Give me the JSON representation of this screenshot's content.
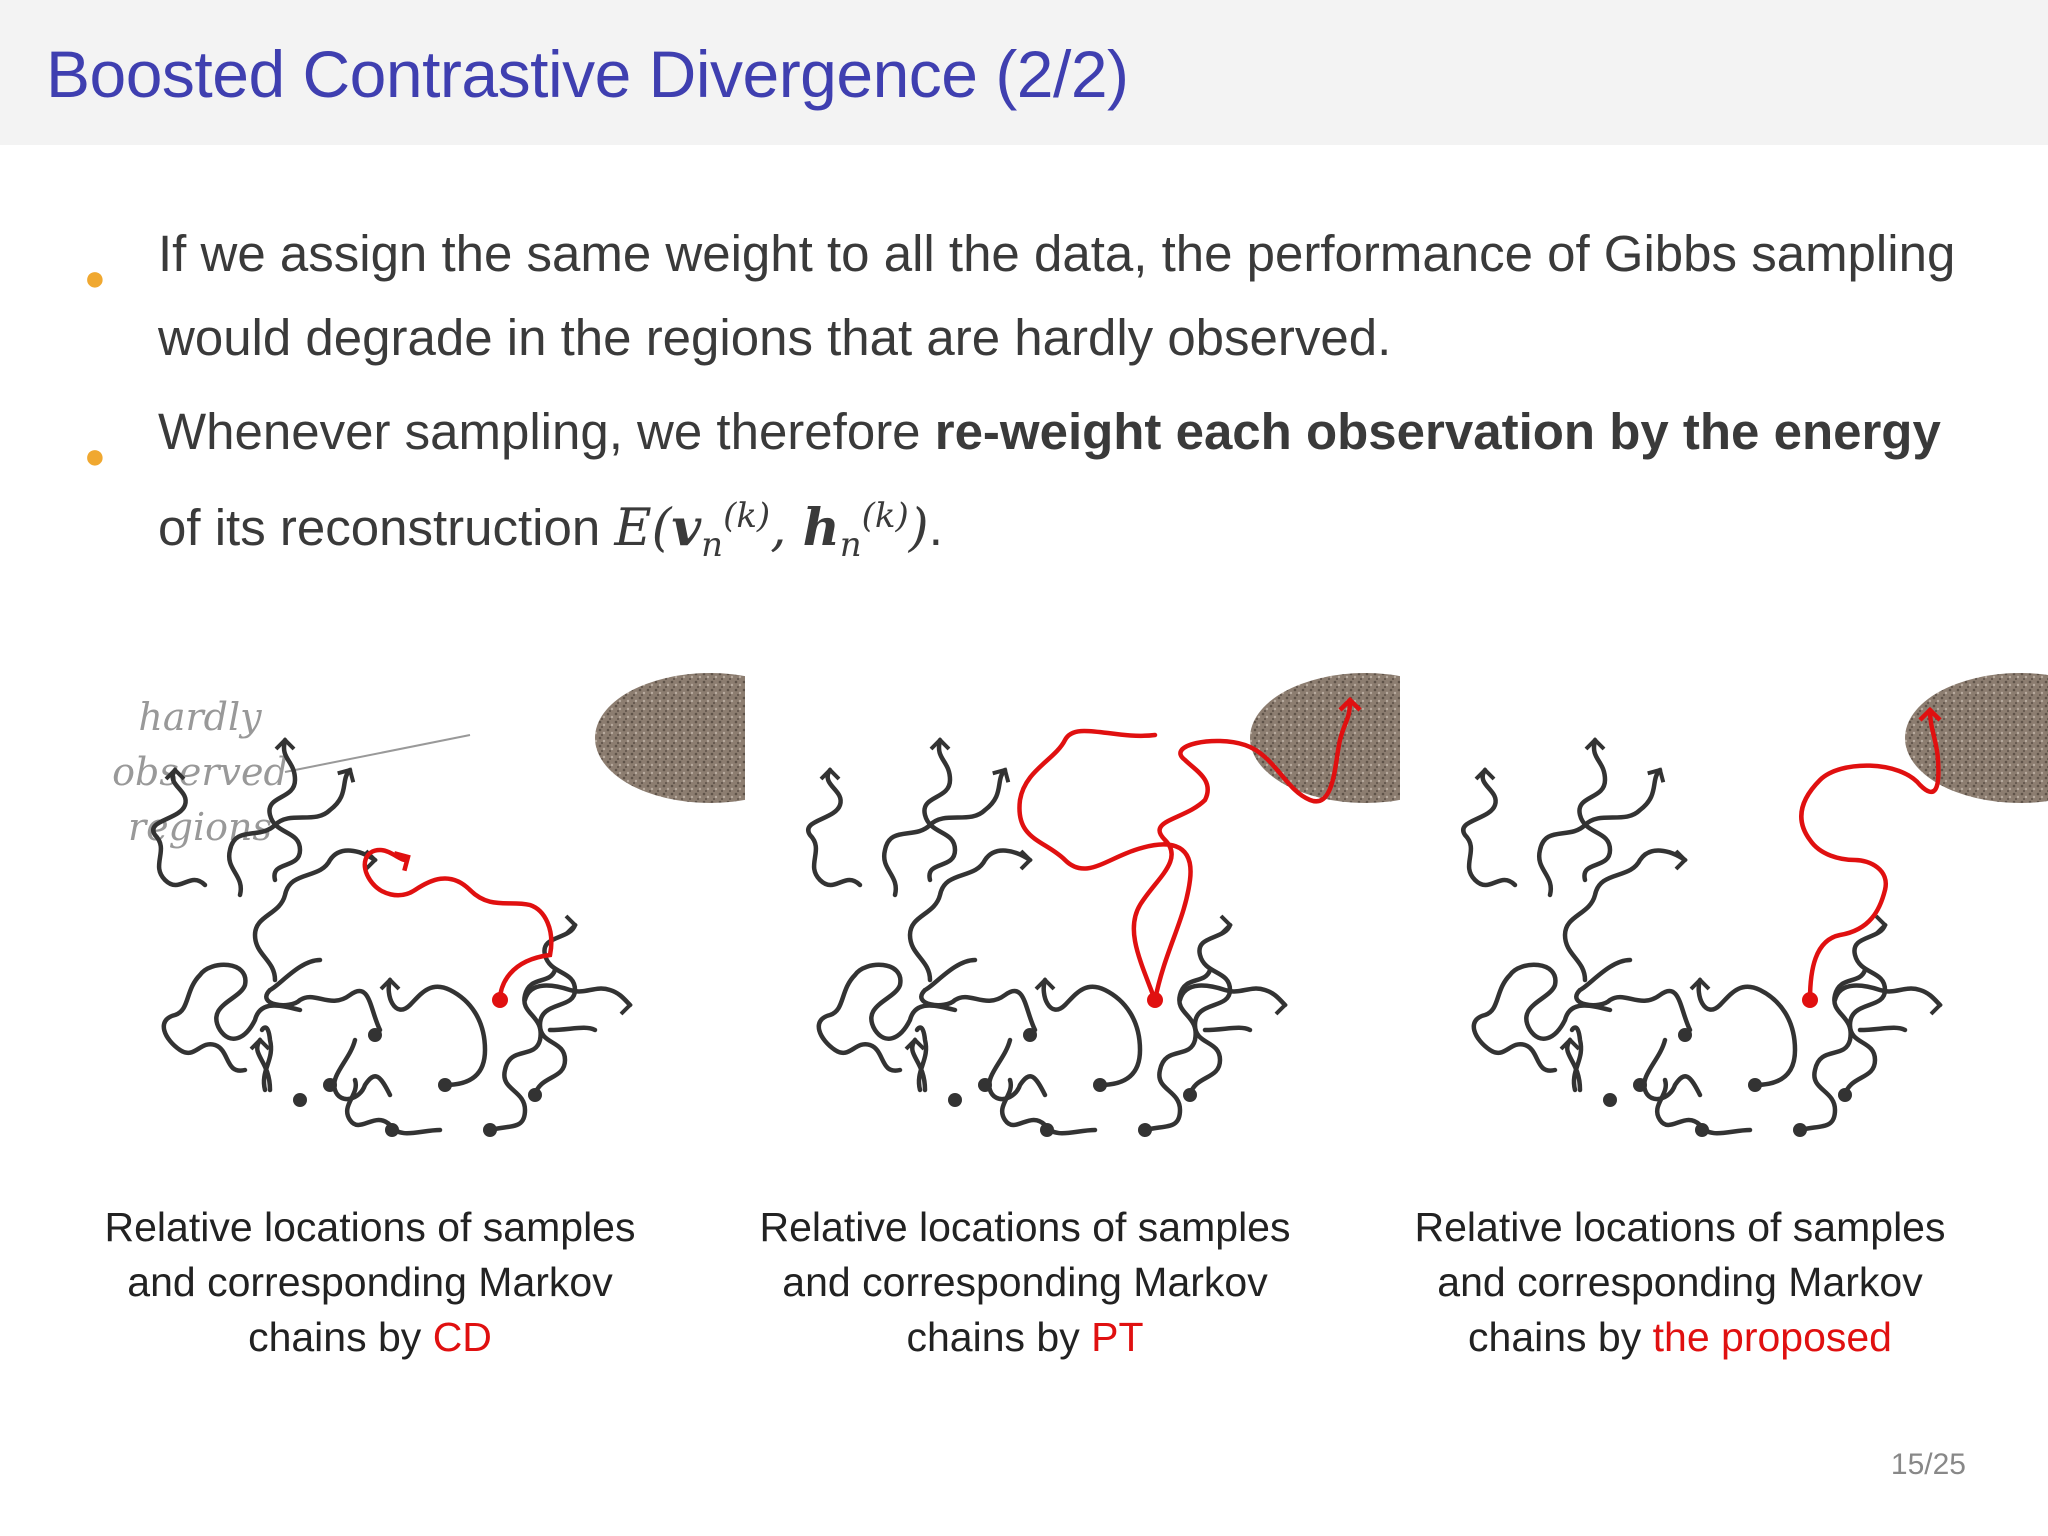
{
  "header": {
    "title": "Boosted Contrastive Divergence (2/2)"
  },
  "bullets": [
    {
      "text": "If we assign the same weight to all the data, the performance of Gibbs sampling would degrade in the regions that are hardly observed."
    },
    {
      "pre": "Whenever sampling, we therefore ",
      "bold": "re-weight each observation by the energy",
      "post": " of its reconstruction ",
      "math": {
        "E": "E",
        "v": "v",
        "h": "h",
        "sub": "n",
        "sup": "(k)"
      },
      "end": "."
    }
  ],
  "annotation": {
    "line1": "hardly",
    "line2": "observed",
    "line3": "regions"
  },
  "panels": [
    {
      "caption_line1": "Relative locations of samples",
      "caption_line2": "and corresponding Markov",
      "caption_pre": "chains by ",
      "caption_accent": "CD"
    },
    {
      "caption_line1": "Relative locations of samples",
      "caption_line2": "and corresponding Markov",
      "caption_pre": "chains by ",
      "caption_accent": "PT"
    },
    {
      "caption_line1": "Relative locations of samples",
      "caption_line2": "and corresponding Markov",
      "caption_pre": "chains by ",
      "caption_accent": "the proposed"
    }
  ],
  "colors": {
    "title": "#3f3fb0",
    "bullet": "#f0a830",
    "chain": "#333333",
    "highlight": "#e01010",
    "region": "#8c7d70"
  },
  "page": {
    "number": "15/25"
  }
}
